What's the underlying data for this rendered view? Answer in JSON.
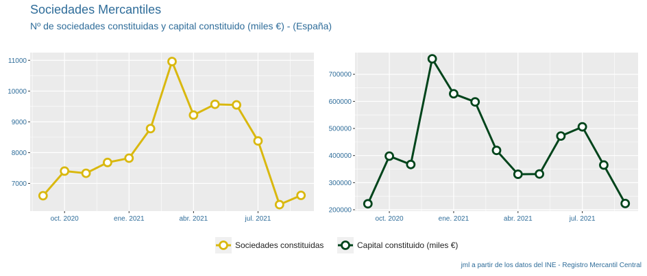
{
  "header": {
    "title": "Sociedades Mercantiles",
    "subtitle": "Nº de sociedades constituidas y capital constituido (miles €) - (España)"
  },
  "caption": "jml a partir de los datos del INE - Registro Mercantil Central",
  "colors": {
    "panel_bg": "#ebebeb",
    "grid": "#ffffff",
    "text": "#2e6c99",
    "series1": "#d9b80f",
    "series2": "#00441b"
  },
  "chart_data": [
    {
      "type": "line",
      "months": [
        "2020-09",
        "2020-10",
        "2020-11",
        "2020-12",
        "2021-01",
        "2021-02",
        "2021-03",
        "2021-04",
        "2021-05",
        "2021-06",
        "2021-07",
        "2021-08",
        "2021-09"
      ],
      "x_ticks": [
        {
          "label": "oct. 2020",
          "month": "2020-10"
        },
        {
          "label": "ene. 2021",
          "month": "2021-01"
        },
        {
          "label": "abr. 2021",
          "month": "2021-04"
        },
        {
          "label": "jul. 2021",
          "month": "2021-07"
        }
      ],
      "y_ticks": [
        7000,
        8000,
        9000,
        10000,
        11000
      ],
      "y_tick_labels": [
        "7000",
        "8000",
        "9000",
        "10000",
        "11000"
      ],
      "ylim": [
        6100,
        11250
      ],
      "series": [
        {
          "name": "Sociedades constituidas",
          "values": [
            6600,
            7400,
            7330,
            7680,
            7820,
            8780,
            10960,
            9220,
            9570,
            9550,
            8380,
            6310,
            6610
          ]
        }
      ]
    },
    {
      "type": "line",
      "months": [
        "2020-09",
        "2020-10",
        "2020-11",
        "2020-12",
        "2021-01",
        "2021-02",
        "2021-03",
        "2021-04",
        "2021-05",
        "2021-06",
        "2021-07",
        "2021-08",
        "2021-09"
      ],
      "x_ticks": [
        {
          "label": "oct. 2020",
          "month": "2020-10"
        },
        {
          "label": "ene. 2021",
          "month": "2021-01"
        },
        {
          "label": "abr. 2021",
          "month": "2021-04"
        },
        {
          "label": "jul. 2021",
          "month": "2021-07"
        }
      ],
      "y_ticks": [
        200000,
        300000,
        400000,
        500000,
        600000,
        700000
      ],
      "y_tick_labels": [
        "200000",
        "300000",
        "400000",
        "500000",
        "600000",
        "700000"
      ],
      "ylim": [
        195000,
        780000
      ],
      "series": [
        {
          "name": "Capital constituido (miles €)",
          "values": [
            222000,
            398000,
            367000,
            757000,
            628000,
            598000,
            419000,
            331000,
            332000,
            472000,
            506000,
            365000,
            223000
          ]
        }
      ]
    }
  ]
}
